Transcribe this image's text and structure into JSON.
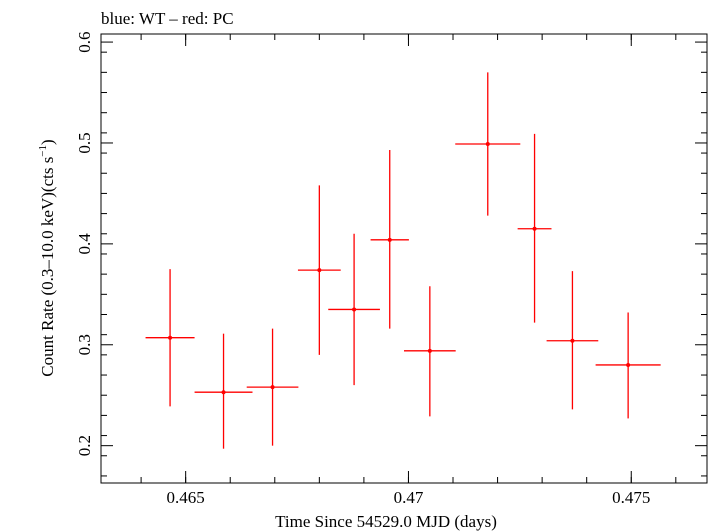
{
  "chart_data": {
    "type": "scatter",
    "title": "blue: WT – red: PC",
    "xlabel": "Time Since 54529.0 MJD (days)",
    "ylabel_main": "Count Rate (0.3–10.0 keV)(cts s",
    "ylabel_sup": "−1",
    "ylabel_close": ")",
    "xlim": [
      0.4631,
      0.4767
    ],
    "ylim": [
      0.163,
      0.608
    ],
    "x_ticks": [
      {
        "value": 0.465,
        "label": "0.465"
      },
      {
        "value": 0.47,
        "label": "0.47"
      },
      {
        "value": 0.475,
        "label": "0.475"
      }
    ],
    "y_ticks": [
      {
        "value": 0.2,
        "label": "0.2"
      },
      {
        "value": 0.3,
        "label": "0.3"
      },
      {
        "value": 0.4,
        "label": "0.4"
      },
      {
        "value": 0.5,
        "label": "0.5"
      },
      {
        "value": 0.6,
        "label": "0.6"
      }
    ],
    "grid": false,
    "series": [
      {
        "color": "#ff0000",
        "points": [
          {
            "x": 0.46465,
            "y": 0.307,
            "xerr": 0.00055,
            "yerr_low": 0.068,
            "yerr_high": 0.068
          },
          {
            "x": 0.46585,
            "y": 0.253,
            "xerr": 0.00065,
            "yerr_low": 0.056,
            "yerr_high": 0.058
          },
          {
            "x": 0.46695,
            "y": 0.258,
            "xerr": 0.00058,
            "yerr_low": 0.058,
            "yerr_high": 0.058
          },
          {
            "x": 0.468,
            "y": 0.374,
            "xerr": 0.00048,
            "yerr_low": 0.084,
            "yerr_high": 0.084
          },
          {
            "x": 0.46878,
            "y": 0.335,
            "xerr": 0.00058,
            "yerr_low": 0.075,
            "yerr_high": 0.075
          },
          {
            "x": 0.46958,
            "y": 0.404,
            "xerr": 0.00043,
            "yerr_low": 0.088,
            "yerr_high": 0.089
          },
          {
            "x": 0.47048,
            "y": 0.294,
            "xerr": 0.00058,
            "yerr_low": 0.065,
            "yerr_high": 0.064
          },
          {
            "x": 0.47178,
            "y": 0.499,
            "xerr": 0.00073,
            "yerr_low": 0.071,
            "yerr_high": 0.071
          },
          {
            "x": 0.47283,
            "y": 0.415,
            "xerr": 0.00038,
            "yerr_low": 0.093,
            "yerr_high": 0.094
          },
          {
            "x": 0.47368,
            "y": 0.304,
            "xerr": 0.00058,
            "yerr_low": 0.068,
            "yerr_high": 0.069
          },
          {
            "x": 0.47493,
            "y": 0.28,
            "xerr": 0.00073,
            "yerr_low": 0.053,
            "yerr_high": 0.052
          }
        ]
      }
    ]
  }
}
